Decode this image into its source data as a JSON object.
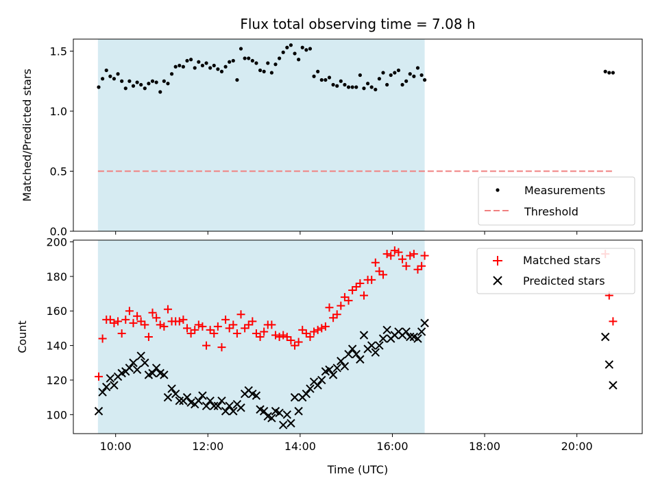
{
  "chart_data": [
    {
      "type": "scatter",
      "title": "Flux total observing time = 7.08 h",
      "xlabel": "",
      "ylabel": "Matched/Predicted stars",
      "xlim": [
        "09:05",
        "21:25"
      ],
      "ylim": [
        0.0,
        1.6
      ],
      "yticks": [
        "0.0",
        "0.5",
        "1.0",
        "1.5"
      ],
      "grid": false,
      "legend": "lower-right",
      "observing_window": [
        "09:37",
        "16:42"
      ],
      "colors": {
        "measurements": "#000000",
        "threshold": "#f08080",
        "window": "#add8e6"
      },
      "series": [
        {
          "name": "Measurements",
          "kind": "points",
          "x": [
            "09:38",
            "09:43",
            "09:48",
            "09:53",
            "09:58",
            "10:03",
            "10:08",
            "10:13",
            "10:18",
            "10:23",
            "10:28",
            "10:33",
            "10:38",
            "10:43",
            "10:48",
            "10:53",
            "10:58",
            "11:03",
            "11:08",
            "11:13",
            "11:18",
            "11:23",
            "11:28",
            "11:33",
            "11:38",
            "11:43",
            "11:48",
            "11:53",
            "11:58",
            "12:03",
            "12:08",
            "12:13",
            "12:18",
            "12:23",
            "12:28",
            "12:33",
            "12:38",
            "12:43",
            "12:48",
            "12:53",
            "12:58",
            "13:03",
            "13:08",
            "13:13",
            "13:18",
            "13:23",
            "13:28",
            "13:33",
            "13:38",
            "13:43",
            "13:48",
            "13:53",
            "13:58",
            "14:03",
            "14:08",
            "14:13",
            "14:18",
            "14:23",
            "14:28",
            "14:33",
            "14:38",
            "14:43",
            "14:48",
            "14:53",
            "14:58",
            "15:03",
            "15:08",
            "15:13",
            "15:18",
            "15:23",
            "15:28",
            "15:33",
            "15:38",
            "15:43",
            "15:48",
            "15:53",
            "15:58",
            "16:03",
            "16:08",
            "16:13",
            "16:18",
            "16:23",
            "16:28",
            "16:33",
            "16:38",
            "16:42",
            "20:37",
            "20:42",
            "20:47"
          ],
          "y": [
            1.2,
            1.27,
            1.34,
            1.29,
            1.27,
            1.31,
            1.25,
            1.19,
            1.25,
            1.21,
            1.24,
            1.22,
            1.19,
            1.23,
            1.25,
            1.24,
            1.16,
            1.25,
            1.23,
            1.31,
            1.37,
            1.38,
            1.37,
            1.42,
            1.43,
            1.36,
            1.41,
            1.38,
            1.4,
            1.36,
            1.38,
            1.35,
            1.33,
            1.37,
            1.41,
            1.42,
            1.26,
            1.52,
            1.44,
            1.44,
            1.42,
            1.4,
            1.34,
            1.33,
            1.4,
            1.32,
            1.39,
            1.44,
            1.49,
            1.53,
            1.55,
            1.48,
            1.43,
            1.53,
            1.51,
            1.52,
            1.29,
            1.33,
            1.26,
            1.26,
            1.28,
            1.22,
            1.21,
            1.25,
            1.22,
            1.2,
            1.2,
            1.2,
            1.3,
            1.19,
            1.23,
            1.2,
            1.18,
            1.27,
            1.32,
            1.22,
            1.3,
            1.32,
            1.34,
            1.22,
            1.25,
            1.31,
            1.29,
            1.36,
            1.3,
            1.26,
            1.33,
            1.32,
            1.32
          ]
        },
        {
          "name": "Threshold",
          "kind": "dashed-line",
          "x": [
            "09:37",
            "20:48"
          ],
          "y": [
            0.5,
            0.5
          ]
        }
      ]
    },
    {
      "type": "scatter",
      "title": "",
      "xlabel": "Time (UTC)",
      "ylabel": "Count",
      "xlim": [
        "09:05",
        "21:25"
      ],
      "ylim": [
        89,
        201
      ],
      "yticks": [
        "100",
        "120",
        "140",
        "160",
        "180",
        "200"
      ],
      "xticks": [
        "10:00",
        "12:00",
        "14:00",
        "16:00",
        "18:00",
        "20:00"
      ],
      "grid": false,
      "legend": "top-right",
      "observing_window": [
        "09:37",
        "16:42"
      ],
      "colors": {
        "matched": "#ff0000",
        "predicted": "#000000",
        "window": "#add8e6"
      },
      "series": [
        {
          "name": "Matched stars",
          "marker": "plus",
          "x": [
            "09:38",
            "09:43",
            "09:48",
            "09:53",
            "09:58",
            "10:03",
            "10:08",
            "10:13",
            "10:18",
            "10:23",
            "10:28",
            "10:33",
            "10:38",
            "10:43",
            "10:48",
            "10:53",
            "10:58",
            "11:03",
            "11:08",
            "11:13",
            "11:18",
            "11:23",
            "11:28",
            "11:33",
            "11:38",
            "11:43",
            "11:48",
            "11:53",
            "11:58",
            "12:03",
            "12:08",
            "12:13",
            "12:18",
            "12:23",
            "12:28",
            "12:33",
            "12:38",
            "12:43",
            "12:48",
            "12:53",
            "12:58",
            "13:03",
            "13:08",
            "13:13",
            "13:18",
            "13:23",
            "13:28",
            "13:33",
            "13:38",
            "13:43",
            "13:48",
            "13:53",
            "13:58",
            "14:03",
            "14:08",
            "14:13",
            "14:18",
            "14:23",
            "14:28",
            "14:33",
            "14:38",
            "14:43",
            "14:48",
            "14:53",
            "14:58",
            "15:03",
            "15:08",
            "15:13",
            "15:18",
            "15:23",
            "15:28",
            "15:33",
            "15:38",
            "15:43",
            "15:48",
            "15:53",
            "15:58",
            "16:03",
            "16:08",
            "16:13",
            "16:18",
            "16:23",
            "16:28",
            "16:33",
            "16:38",
            "16:42",
            "20:37",
            "20:42",
            "20:47"
          ],
          "y": [
            122,
            144,
            155,
            155,
            153,
            154,
            147,
            155,
            160,
            153,
            157,
            154,
            152,
            145,
            159,
            156,
            152,
            151,
            161,
            154,
            154,
            154,
            155,
            150,
            147,
            149,
            152,
            151,
            140,
            149,
            147,
            151,
            139,
            155,
            150,
            152,
            147,
            158,
            150,
            152,
            154,
            147,
            145,
            148,
            152,
            152,
            146,
            145,
            146,
            145,
            143,
            140,
            142,
            149,
            147,
            145,
            148,
            149,
            150,
            151,
            162,
            156,
            158,
            163,
            168,
            166,
            172,
            174,
            176,
            169,
            178,
            178,
            188,
            183,
            181,
            193,
            192,
            195,
            194,
            190,
            186,
            192,
            193,
            184,
            186,
            192,
            193,
            169,
            154
          ]
        },
        {
          "name": "Predicted stars",
          "marker": "cross",
          "x": [
            "09:38",
            "09:43",
            "09:48",
            "09:53",
            "09:58",
            "10:03",
            "10:08",
            "10:13",
            "10:18",
            "10:23",
            "10:28",
            "10:33",
            "10:38",
            "10:43",
            "10:48",
            "10:53",
            "10:58",
            "11:03",
            "11:08",
            "11:13",
            "11:18",
            "11:23",
            "11:28",
            "11:33",
            "11:38",
            "11:43",
            "11:48",
            "11:53",
            "11:58",
            "12:03",
            "12:08",
            "12:13",
            "12:18",
            "12:23",
            "12:28",
            "12:33",
            "12:38",
            "12:43",
            "12:48",
            "12:53",
            "12:58",
            "13:03",
            "13:08",
            "13:13",
            "13:18",
            "13:23",
            "13:28",
            "13:33",
            "13:38",
            "13:43",
            "13:48",
            "13:53",
            "13:58",
            "14:03",
            "14:08",
            "14:13",
            "14:18",
            "14:23",
            "14:28",
            "14:33",
            "14:38",
            "14:43",
            "14:48",
            "14:53",
            "14:58",
            "15:03",
            "15:08",
            "15:13",
            "15:18",
            "15:23",
            "15:28",
            "15:33",
            "15:38",
            "15:43",
            "15:48",
            "15:53",
            "15:58",
            "16:03",
            "16:08",
            "16:13",
            "16:18",
            "16:23",
            "16:28",
            "16:33",
            "16:38",
            "16:42",
            "20:37",
            "20:42",
            "20:47"
          ],
          "y": [
            102,
            113,
            116,
            121,
            117,
            122,
            124,
            125,
            127,
            130,
            126,
            134,
            130,
            123,
            124,
            127,
            124,
            123,
            110,
            115,
            112,
            108,
            108,
            110,
            107,
            106,
            108,
            111,
            105,
            108,
            105,
            105,
            108,
            102,
            105,
            102,
            106,
            104,
            112,
            114,
            112,
            111,
            103,
            102,
            99,
            98,
            102,
            101,
            94,
            100,
            95,
            110,
            102,
            110,
            112,
            115,
            119,
            117,
            120,
            125,
            126,
            123,
            127,
            131,
            128,
            135,
            138,
            135,
            132,
            146,
            138,
            140,
            136,
            140,
            144,
            149,
            144,
            146,
            148,
            146,
            148,
            145,
            145,
            144,
            148,
            153,
            145,
            129,
            117
          ]
        }
      ]
    }
  ]
}
